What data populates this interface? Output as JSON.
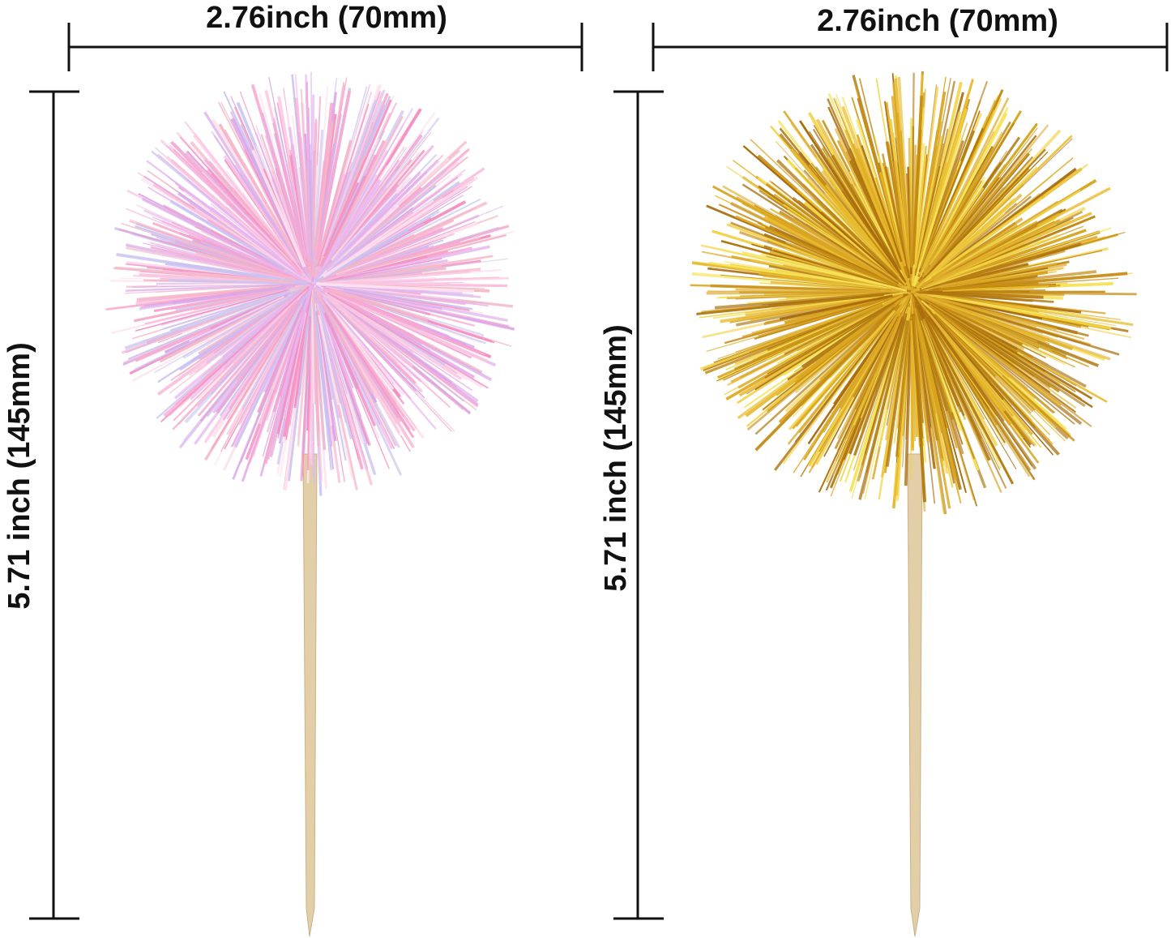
{
  "left_item": {
    "width_label": "2.76inch  (70mm)",
    "height_label": "5.71 inch  (145mm)",
    "pompom_colors": [
      "#f7a8d0",
      "#fbc6e2",
      "#e7b4f0",
      "#c9c3f2",
      "#f58fc0",
      "#fde2ee",
      "#d8a8e8",
      "#f4b8c8"
    ],
    "color_name": "iridescent pink"
  },
  "right_item": {
    "width_label": "2.76inch  (70mm)",
    "height_label": "5.71 inch  (145mm)",
    "pompom_colors": [
      "#d9a521",
      "#e8b92a",
      "#c48a12",
      "#f2d040",
      "#b07810",
      "#f6e35a",
      "#a86c0c",
      "#e0ae30"
    ],
    "color_name": "gold"
  },
  "colors": {
    "dimension_line": "#111111",
    "stick": "#e2cfa8",
    "stick_shade": "#c9b184"
  }
}
